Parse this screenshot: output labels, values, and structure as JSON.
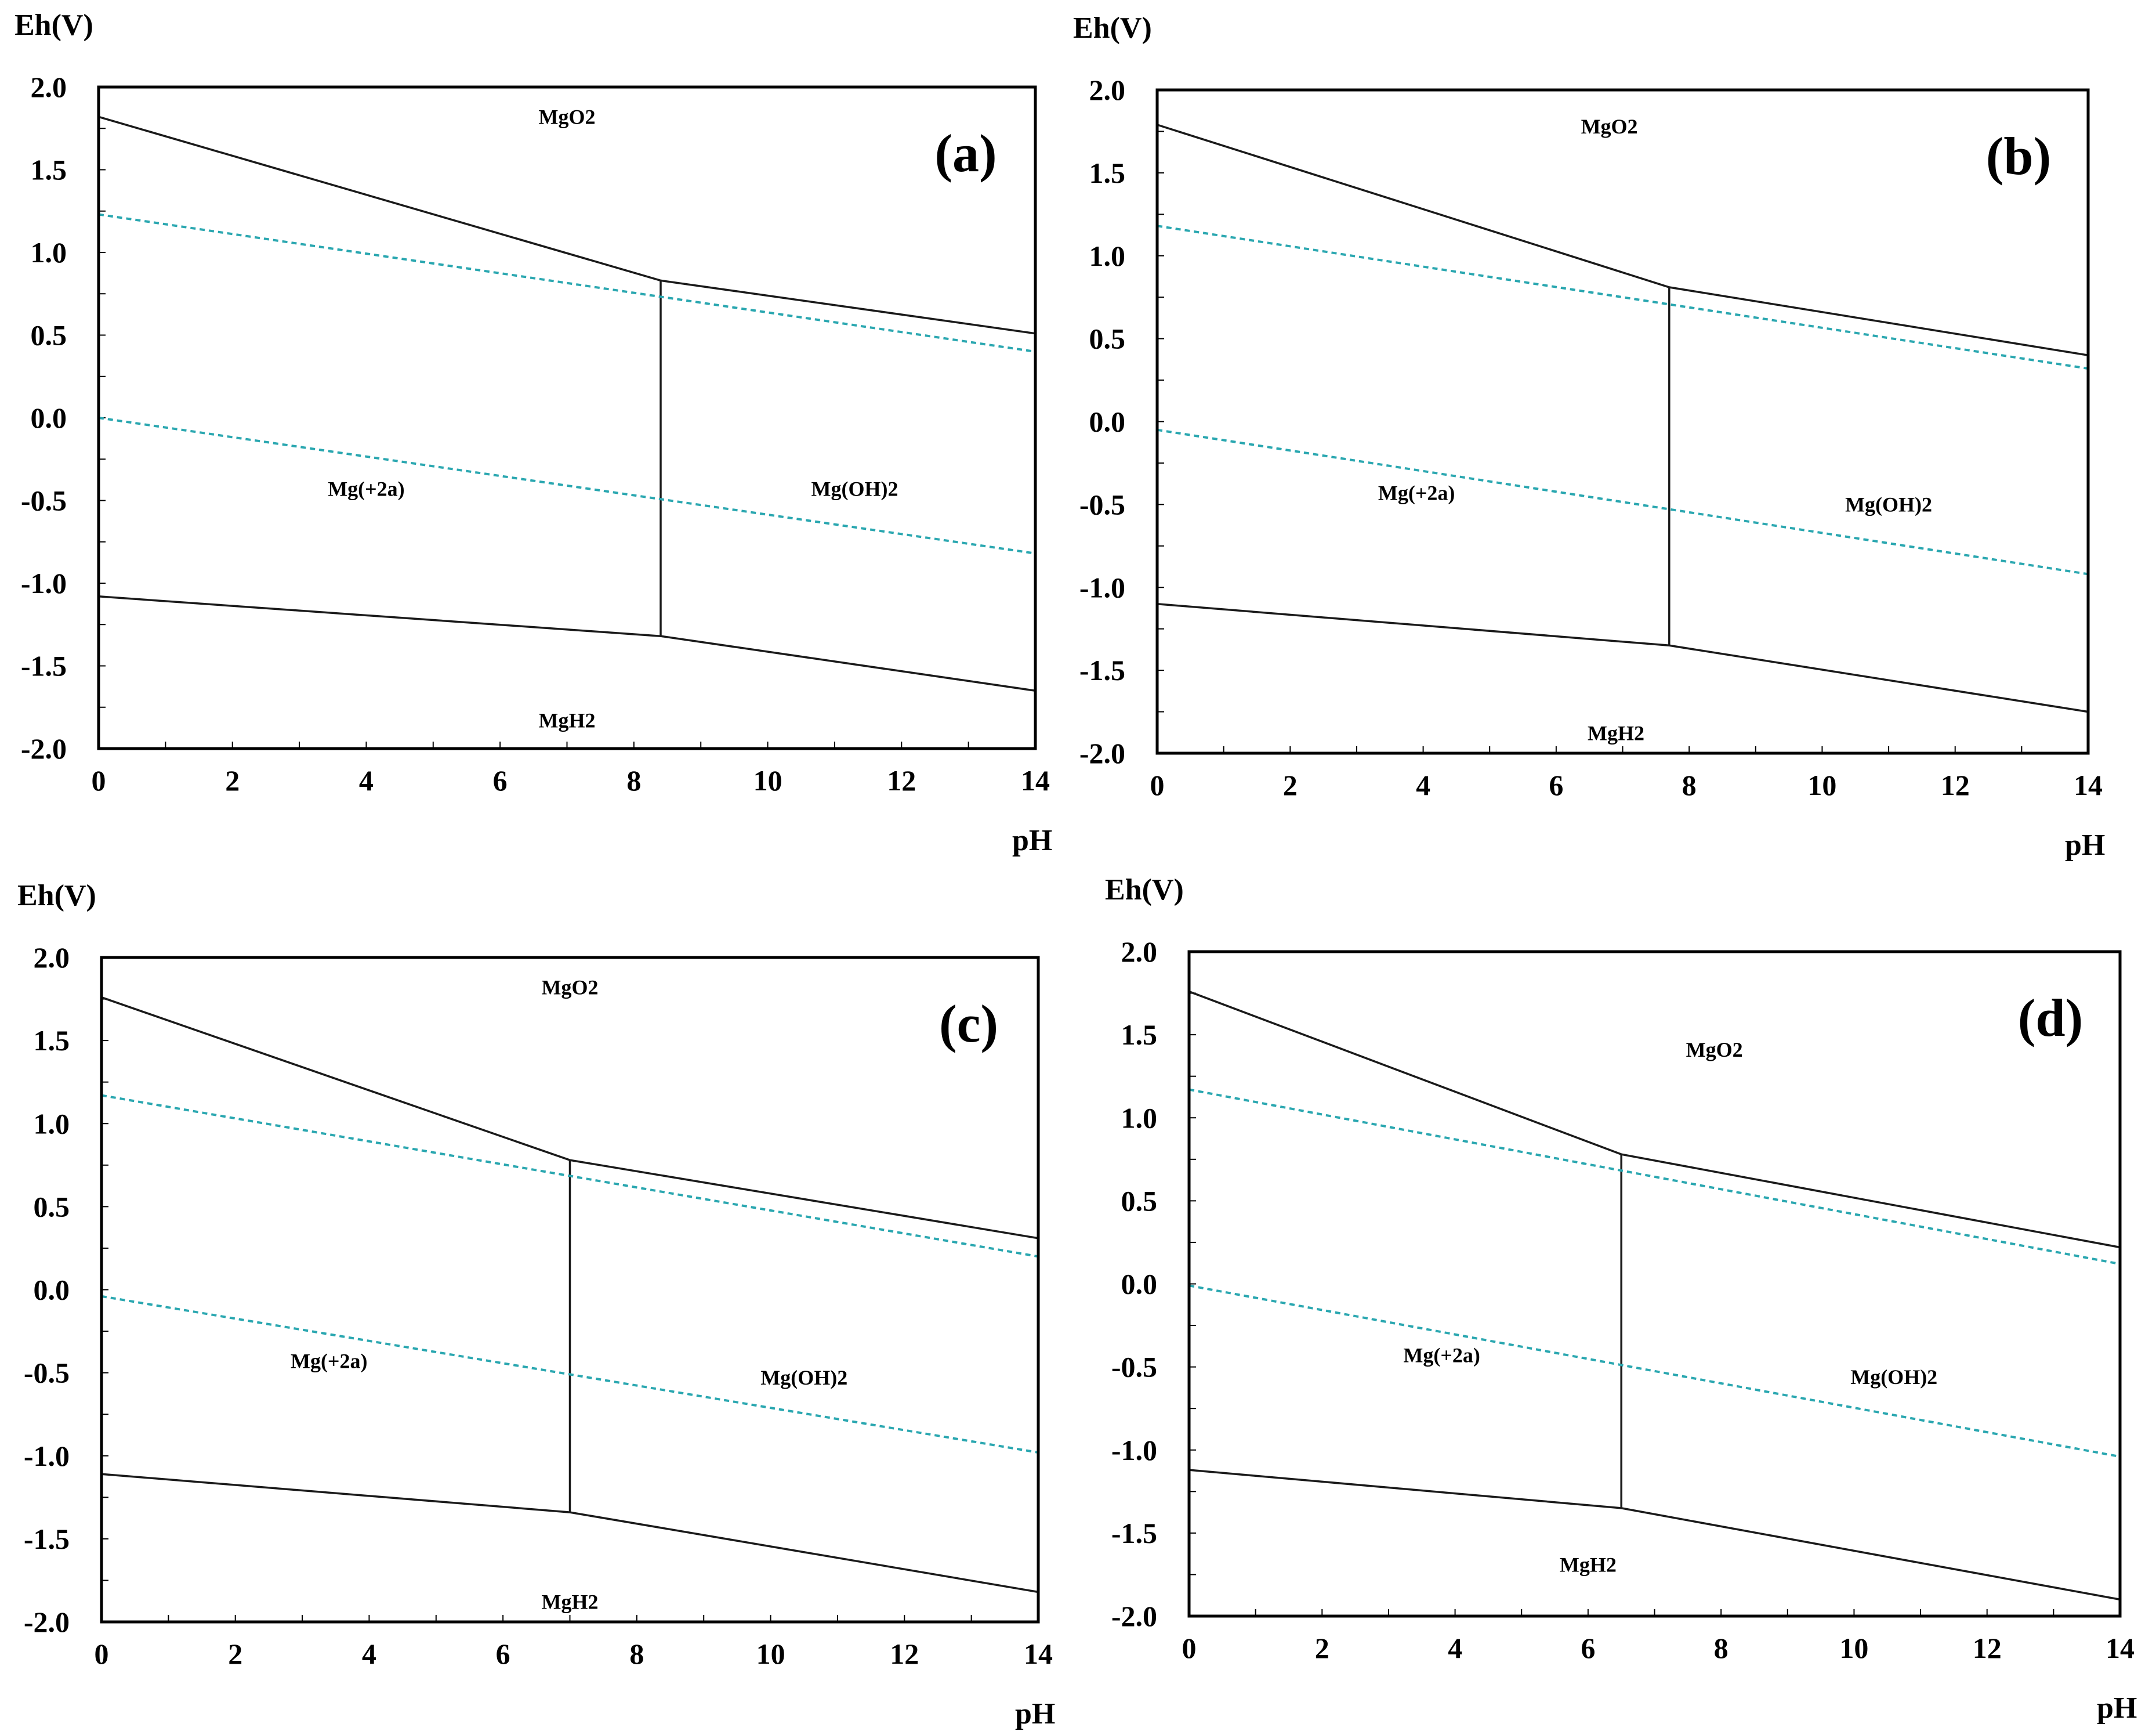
{
  "chart_data": [
    {
      "type": "line",
      "panel_label": "(a)",
      "xlabel": "pH",
      "ylabel": "Eh(V)",
      "xlim": [
        0,
        14
      ],
      "ylim": [
        -2.0,
        2.0
      ],
      "x_ticks": [
        "0",
        "2",
        "4",
        "6",
        "8",
        "10",
        "12",
        "14"
      ],
      "y_ticks": [
        "2.0",
        "1.5",
        "1.0",
        "0.5",
        "0.0",
        "-0.5",
        "-1.0",
        "-1.5",
        "-2.0"
      ],
      "series": [
        {
          "name": "MgO2 upper boundary",
          "style": "solid",
          "x": [
            0,
            8.4,
            14
          ],
          "y": [
            1.82,
            0.83,
            0.51
          ]
        },
        {
          "name": "Mg(+2a) / Mg(OH)2 boundary",
          "style": "solid",
          "x": [
            8.4,
            8.4
          ],
          "y": [
            0.83,
            -1.32
          ]
        },
        {
          "name": "MgH2 lower boundary",
          "style": "solid",
          "x": [
            0,
            8.4,
            14
          ],
          "y": [
            -1.08,
            -1.32,
            -1.65
          ]
        },
        {
          "name": "O2/H2O water line",
          "style": "dashed",
          "x": [
            0,
            14
          ],
          "y": [
            1.23,
            0.4
          ]
        },
        {
          "name": "H2O/H2 water line",
          "style": "dashed",
          "x": [
            0,
            14
          ],
          "y": [
            0.0,
            -0.82
          ]
        }
      ],
      "region_labels": [
        {
          "text": "MgO2",
          "pH": 7.0,
          "Eh": 1.82
        },
        {
          "text": "Mg(+2a)",
          "pH": 4.0,
          "Eh": -0.43
        },
        {
          "text": "Mg(OH)2",
          "pH": 11.3,
          "Eh": -0.43
        },
        {
          "text": "MgH2",
          "pH": 7.0,
          "Eh": -1.83
        }
      ]
    },
    {
      "type": "line",
      "panel_label": "(b)",
      "xlabel": "pH",
      "ylabel": "Eh(V)",
      "xlim": [
        0,
        14
      ],
      "ylim": [
        -2.0,
        2.0
      ],
      "x_ticks": [
        "0",
        "2",
        "4",
        "6",
        "8",
        "10",
        "12",
        "14"
      ],
      "y_ticks": [
        "2.0",
        "1.5",
        "1.0",
        "0.5",
        "0.0",
        "-0.5",
        "-1.0",
        "-1.5",
        "-2.0"
      ],
      "series": [
        {
          "name": "MgO2 upper boundary",
          "style": "solid",
          "x": [
            0,
            7.7,
            14
          ],
          "y": [
            1.79,
            0.81,
            0.4
          ]
        },
        {
          "name": "Mg(+2a) / Mg(OH)2 boundary",
          "style": "solid",
          "x": [
            7.7,
            7.7
          ],
          "y": [
            0.81,
            -1.35
          ]
        },
        {
          "name": "MgH2 lower boundary",
          "style": "solid",
          "x": [
            0,
            7.7,
            14
          ],
          "y": [
            -1.1,
            -1.35,
            -1.75
          ]
        },
        {
          "name": "O2/H2O water line",
          "style": "dashed",
          "x": [
            0,
            14
          ],
          "y": [
            1.18,
            0.32
          ]
        },
        {
          "name": "H2O/H2 water line",
          "style": "dashed",
          "x": [
            0,
            14
          ],
          "y": [
            -0.05,
            -0.92
          ]
        }
      ],
      "region_labels": [
        {
          "text": "MgO2",
          "pH": 6.8,
          "Eh": 1.78
        },
        {
          "text": "Mg(+2a)",
          "pH": 3.9,
          "Eh": -0.43
        },
        {
          "text": "Mg(OH)2",
          "pH": 11.0,
          "Eh": -0.5
        },
        {
          "text": "MgH2",
          "pH": 6.9,
          "Eh": -1.88
        }
      ]
    },
    {
      "type": "line",
      "panel_label": "(c)",
      "xlabel": "pH",
      "ylabel": "Eh(V)",
      "xlim": [
        0,
        14
      ],
      "ylim": [
        -2.0,
        2.0
      ],
      "x_ticks": [
        "0",
        "2",
        "4",
        "6",
        "8",
        "10",
        "12",
        "14"
      ],
      "y_ticks": [
        "2.0",
        "1.5",
        "1.0",
        "0.5",
        "0.0",
        "-0.5",
        "-1.0",
        "-1.5",
        "-2.0"
      ],
      "series": [
        {
          "name": "MgO2 upper boundary",
          "style": "solid",
          "x": [
            0,
            7.0,
            14
          ],
          "y": [
            1.76,
            0.78,
            0.31
          ]
        },
        {
          "name": "Mg(+2a) / Mg(OH)2 boundary",
          "style": "solid",
          "x": [
            7.0,
            7.0
          ],
          "y": [
            0.78,
            -1.34
          ]
        },
        {
          "name": "MgH2 lower boundary",
          "style": "solid",
          "x": [
            0,
            7.0,
            14
          ],
          "y": [
            -1.11,
            -1.34,
            -1.82
          ]
        },
        {
          "name": "O2/H2O water line",
          "style": "dashed",
          "x": [
            0,
            14
          ],
          "y": [
            1.17,
            0.2
          ]
        },
        {
          "name": "H2O/H2 water line",
          "style": "dashed",
          "x": [
            0,
            14
          ],
          "y": [
            -0.04,
            -0.98
          ]
        }
      ],
      "region_labels": [
        {
          "text": "MgO2",
          "pH": 7.0,
          "Eh": 1.82
        },
        {
          "text": "Mg(+2a)",
          "pH": 3.4,
          "Eh": -0.43
        },
        {
          "text": "Mg(OH)2",
          "pH": 10.5,
          "Eh": -0.53
        },
        {
          "text": "MgH2",
          "pH": 7.0,
          "Eh": -1.88
        }
      ]
    },
    {
      "type": "line",
      "panel_label": "(d)",
      "xlabel": "pH",
      "ylabel": "Eh(V)",
      "xlim": [
        0,
        14
      ],
      "ylim": [
        -2.0,
        2.0
      ],
      "x_ticks": [
        "0",
        "2",
        "4",
        "6",
        "8",
        "10",
        "12",
        "14"
      ],
      "y_ticks": [
        "2.0",
        "1.5",
        "1.0",
        "0.5",
        "0.0",
        "-0.5",
        "-1.0",
        "-1.5",
        "-2.0"
      ],
      "series": [
        {
          "name": "MgO2 upper boundary",
          "style": "solid",
          "x": [
            0,
            6.5,
            14
          ],
          "y": [
            1.76,
            0.78,
            0.22
          ]
        },
        {
          "name": "Mg(+2a) / Mg(OH)2 boundary",
          "style": "solid",
          "x": [
            6.5,
            6.5
          ],
          "y": [
            0.78,
            -1.35
          ]
        },
        {
          "name": "MgH2 lower boundary",
          "style": "solid",
          "x": [
            0,
            6.5,
            14
          ],
          "y": [
            -1.12,
            -1.35,
            -1.9
          ]
        },
        {
          "name": "O2/H2O water line",
          "style": "dashed",
          "x": [
            0,
            14
          ],
          "y": [
            1.17,
            0.12
          ]
        },
        {
          "name": "H2O/H2 water line",
          "style": "dashed",
          "x": [
            0,
            14
          ],
          "y": [
            -0.01,
            -1.04
          ]
        }
      ],
      "region_labels": [
        {
          "text": "MgO2",
          "pH": 7.9,
          "Eh": 1.41
        },
        {
          "text": "Mg(+2a)",
          "pH": 3.8,
          "Eh": -0.43
        },
        {
          "text": "Mg(OH)2",
          "pH": 10.6,
          "Eh": -0.56
        },
        {
          "text": "MgH2",
          "pH": 6.0,
          "Eh": -1.69
        }
      ]
    }
  ],
  "colors": {
    "boundary": "#1a1a1a",
    "water_line": "#2aa7b0",
    "frame": "#000000"
  }
}
